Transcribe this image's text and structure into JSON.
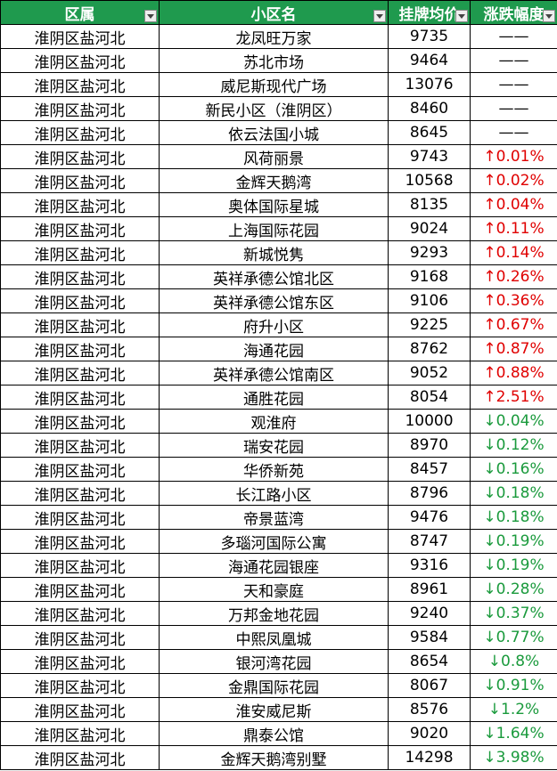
{
  "table": {
    "header": [
      "区属",
      "小区名",
      "挂牌均价",
      "涨跌幅度"
    ],
    "rows": [
      [
        "淮阴区盐河北",
        "龙凤旺万家",
        9735,
        "——"
      ],
      [
        "淮阴区盐河北",
        "苏北市场",
        9464,
        "——"
      ],
      [
        "淮阴区盐河北",
        "威尼斯现代广场",
        13076,
        "——"
      ],
      [
        "淮阴区盐河北",
        "新民小区（淮阴区）",
        8460,
        "——"
      ],
      [
        "淮阴区盐河北",
        "依云法国小城",
        8645,
        "——"
      ],
      [
        "淮阴区盐河北",
        "风荷丽景",
        9743,
        "↑0.01%"
      ],
      [
        "淮阴区盐河北",
        "金辉天鹅湾",
        10568,
        "↑0.02%"
      ],
      [
        "淮阴区盐河北",
        "奥体国际星城",
        8135,
        "↑0.04%"
      ],
      [
        "淮阴区盐河北",
        "上海国际花园",
        9024,
        "↑0.11%"
      ],
      [
        "淮阴区盐河北",
        "新城悦隽",
        9293,
        "↑0.14%"
      ],
      [
        "淮阴区盐河北",
        "英祥承德公馆北区",
        9168,
        "↑0.26%"
      ],
      [
        "淮阴区盐河北",
        "英祥承德公馆东区",
        9106,
        "↑0.36%"
      ],
      [
        "淮阴区盐河北",
        "府升小区",
        9225,
        "↑0.67%"
      ],
      [
        "淮阴区盐河北",
        "海通花园",
        8762,
        "↑0.87%"
      ],
      [
        "淮阴区盐河北",
        "英祥承德公馆南区",
        9052,
        "↑0.88%"
      ],
      [
        "淮阴区盐河北",
        "通胜花园",
        8054,
        "↑2.51%"
      ],
      [
        "淮阴区盐河北",
        "观淮府",
        10000,
        "↓0.04%"
      ],
      [
        "淮阴区盐河北",
        "瑞安花园",
        8970,
        "↓0.12%"
      ],
      [
        "淮阴区盐河北",
        "华侨新苑",
        8457,
        "↓0.16%"
      ],
      [
        "淮阴区盐河北",
        "长江路小区",
        8796,
        "↓0.18%"
      ],
      [
        "淮阴区盐河北",
        "帝景蓝湾",
        9476,
        "↓0.18%"
      ],
      [
        "淮阴区盐河北",
        "多瑙河国际公寓",
        8747,
        "↓0.19%"
      ],
      [
        "淮阴区盐河北",
        "海通花园银座",
        9316,
        "↓0.19%"
      ],
      [
        "淮阴区盐河北",
        "天和豪庭",
        8961,
        "↓0.28%"
      ],
      [
        "淮阴区盐河北",
        "万邦金地花园",
        9240,
        "↓0.37%"
      ],
      [
        "淮阴区盐河北",
        "中熙凤凰城",
        9584,
        "↓0.77%"
      ],
      [
        "淮阴区盐河北",
        "银河湾花园",
        8654,
        "↓0.8%"
      ],
      [
        "淮阴区盐河北",
        "金鼎国际花园",
        8067,
        "↓0.91%"
      ],
      [
        "淮阴区盐河北",
        "淮安威尼斯",
        8576,
        "↓1.2%"
      ],
      [
        "淮阴区盐河北",
        "鼎泰公馆",
        9020,
        "↓1.64%"
      ],
      [
        "淮阴区盐河北",
        "金辉天鹅湾别墅",
        14298,
        "↓3.98%"
      ]
    ]
  }
}
